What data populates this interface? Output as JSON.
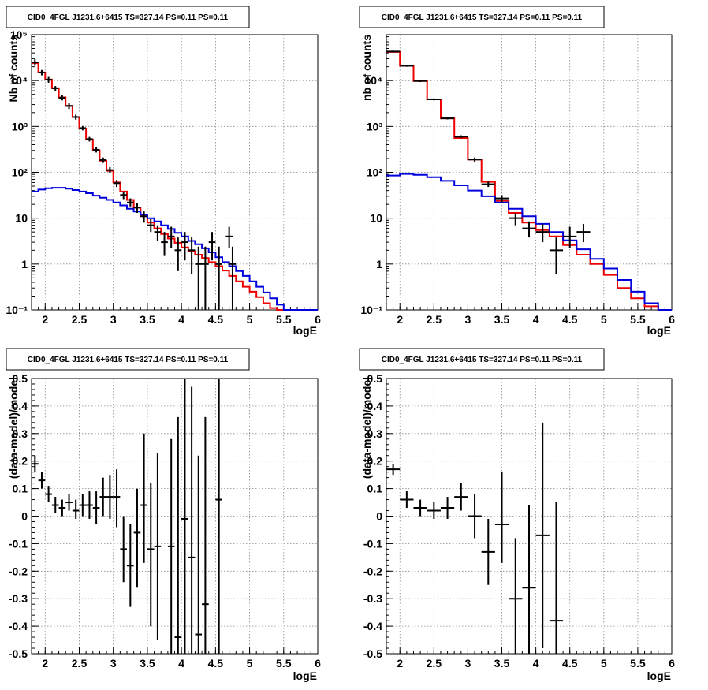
{
  "colors": {
    "data": "#000000",
    "total_model": "#ee0000",
    "component": "#0000dd",
    "grid": "#888888"
  },
  "chart_data": [
    {
      "type": "line",
      "title": "CID0_4FGL J1231.6+6415 TS=327.14 PS=0.11 PS=0.11",
      "xlabel": "logE",
      "ylabel": "Nb of counts",
      "yscale": "log",
      "grid": true,
      "xlim": [
        1.8,
        6.0
      ],
      "ylim": [
        0.1,
        100000
      ],
      "xticks": [
        "2",
        "2.5",
        "3",
        "3.5",
        "4",
        "4.5",
        "5",
        "5.5",
        "6"
      ],
      "yticks": [
        "10⁻¹",
        "1",
        "10",
        "10²",
        "10³",
        "10⁴",
        "10⁵"
      ],
      "bin_edges": [
        1.8,
        1.9,
        2.0,
        2.1,
        2.2,
        2.3,
        2.4,
        2.5,
        2.6,
        2.7,
        2.8,
        2.9,
        3.0,
        3.1,
        3.2,
        3.3,
        3.4,
        3.5,
        3.6,
        3.7,
        3.8,
        3.9,
        4.0,
        4.1,
        4.2,
        4.3,
        4.4,
        4.5,
        4.6,
        4.7,
        4.8,
        4.9,
        5.0,
        5.1,
        5.2,
        5.3,
        5.4,
        5.5,
        5.6,
        5.7,
        5.8,
        5.9,
        6.0
      ],
      "series": [
        {
          "role": "total",
          "values": [
            24000,
            15000,
            10500,
            6800,
            4300,
            2800,
            1600,
            900,
            520,
            300,
            180,
            108,
            60,
            38,
            25,
            17,
            11,
            8,
            6,
            4.5,
            3.6,
            2.9,
            2.3,
            1.9,
            1.6,
            1.35,
            1.1,
            0.9,
            0.72,
            0.55,
            0.42,
            0.32,
            0.25,
            0.19,
            0.14,
            0.11,
            0.1,
            0.1,
            0.1,
            0.1,
            0.1,
            0.1
          ]
        },
        {
          "role": "component",
          "values": [
            38,
            42,
            45,
            46,
            46,
            44,
            41,
            38,
            35,
            31,
            28,
            25,
            22,
            19,
            16,
            14,
            12,
            10,
            8.5,
            7,
            5.8,
            4.8,
            4,
            3.2,
            2.7,
            2.2,
            1.8,
            1.4,
            1.1,
            0.9,
            0.7,
            0.55,
            0.42,
            0.32,
            0.24,
            0.18,
            0.13,
            0.1,
            0.1,
            0.1,
            0.1,
            0.1
          ]
        },
        {
          "role": "data",
          "points": [
            {
              "x": 1.85,
              "y": 25000,
              "lo": 21000,
              "hi": 29000
            },
            {
              "x": 1.95,
              "y": 15000,
              "lo": 13000,
              "hi": 17000
            },
            {
              "x": 2.05,
              "y": 10500,
              "lo": 9000,
              "hi": 12000
            },
            {
              "x": 2.15,
              "y": 6800,
              "lo": 6000,
              "hi": 7600
            },
            {
              "x": 2.25,
              "y": 4200,
              "lo": 3700,
              "hi": 4800
            },
            {
              "x": 2.35,
              "y": 2800,
              "lo": 2400,
              "hi": 3200
            },
            {
              "x": 2.45,
              "y": 1600,
              "lo": 1400,
              "hi": 1800
            },
            {
              "x": 2.55,
              "y": 920,
              "lo": 820,
              "hi": 1020
            },
            {
              "x": 2.65,
              "y": 530,
              "lo": 470,
              "hi": 590
            },
            {
              "x": 2.75,
              "y": 310,
              "lo": 270,
              "hi": 350
            },
            {
              "x": 2.85,
              "y": 185,
              "lo": 160,
              "hi": 210
            },
            {
              "x": 2.95,
              "y": 112,
              "lo": 95,
              "hi": 130
            },
            {
              "x": 3.05,
              "y": 58,
              "lo": 48,
              "hi": 68
            },
            {
              "x": 3.15,
              "y": 32,
              "lo": 26,
              "hi": 38
            },
            {
              "x": 3.25,
              "y": 22,
              "lo": 18,
              "hi": 27
            },
            {
              "x": 3.35,
              "y": 17,
              "lo": 13,
              "hi": 21
            },
            {
              "x": 3.45,
              "y": 11,
              "lo": 8,
              "hi": 14
            },
            {
              "x": 3.55,
              "y": 7,
              "lo": 5,
              "hi": 9.5
            },
            {
              "x": 3.65,
              "y": 5,
              "lo": 3.2,
              "hi": 7
            },
            {
              "x": 3.75,
              "y": 3,
              "lo": 1.5,
              "hi": 5
            },
            {
              "x": 3.85,
              "y": 4,
              "lo": 2.2,
              "hi": 6.5
            },
            {
              "x": 3.95,
              "y": 2,
              "lo": 0.7,
              "hi": 3.8
            },
            {
              "x": 4.05,
              "y": 3,
              "lo": 1.2,
              "hi": 5
            },
            {
              "x": 4.15,
              "y": 2,
              "lo": 0.6,
              "hi": 3.8
            },
            {
              "x": 4.25,
              "y": 1,
              "lo": 0.1,
              "hi": 2.4
            },
            {
              "x": 4.35,
              "y": 1,
              "lo": 0.1,
              "hi": 2.4
            },
            {
              "x": 4.45,
              "y": 3,
              "lo": 1.2,
              "hi": 5
            },
            {
              "x": 4.55,
              "y": 1,
              "lo": 0.1,
              "hi": 2.4
            },
            {
              "x": 4.7,
              "y": 4,
              "lo": 2.2,
              "hi": 6.5
            },
            {
              "x": 4.75,
              "y": 1,
              "lo": 0.1,
              "hi": 2.4
            }
          ]
        }
      ]
    },
    {
      "type": "line",
      "title": "CID0_4FGL J1231.6+6415 TS=327.14 PS=0.11 PS=0.11",
      "xlabel": "logE",
      "ylabel": "nb of counts",
      "yscale": "log",
      "grid": true,
      "xlim": [
        1.8,
        6.0
      ],
      "ylim": [
        0.1,
        100000
      ],
      "xticks": [
        "2",
        "2.5",
        "3",
        "3.5",
        "4",
        "4.5",
        "5",
        "5.5",
        "6"
      ],
      "yticks": [
        "10⁻¹",
        "1",
        "10",
        "10²",
        "10³",
        "10⁴"
      ],
      "bin_edges": [
        1.8,
        2.0,
        2.2,
        2.4,
        2.6,
        2.8,
        3.0,
        3.2,
        3.4,
        3.6,
        3.8,
        4.0,
        4.2,
        4.4,
        4.6,
        4.8,
        5.0,
        5.2,
        5.4,
        5.6,
        5.8,
        6.0
      ],
      "series": [
        {
          "role": "total",
          "values": [
            42000,
            21000,
            9800,
            3900,
            1500,
            560,
            190,
            62,
            24,
            13,
            8,
            5.5,
            4,
            2.6,
            1.6,
            1.0,
            0.58,
            0.3,
            0.18,
            0.12,
            0.1
          ]
        },
        {
          "role": "component",
          "values": [
            85,
            92,
            88,
            78,
            65,
            52,
            40,
            30,
            22,
            16,
            11,
            7.5,
            5,
            3.3,
            2.1,
            1.3,
            0.8,
            0.45,
            0.25,
            0.14,
            0.1
          ]
        },
        {
          "role": "data",
          "points": [
            {
              "x": 1.9,
              "y": 43000,
              "lo": 41000,
              "hi": 45000
            },
            {
              "x": 2.1,
              "y": 21000,
              "lo": 20000,
              "hi": 22000
            },
            {
              "x": 2.3,
              "y": 9800,
              "lo": 9300,
              "hi": 10300
            },
            {
              "x": 2.5,
              "y": 3900,
              "lo": 3700,
              "hi": 4100
            },
            {
              "x": 2.7,
              "y": 1500,
              "lo": 1420,
              "hi": 1580
            },
            {
              "x": 2.9,
              "y": 600,
              "lo": 560,
              "hi": 640
            },
            {
              "x": 3.1,
              "y": 190,
              "lo": 170,
              "hi": 210
            },
            {
              "x": 3.3,
              "y": 55,
              "lo": 48,
              "hi": 62
            },
            {
              "x": 3.5,
              "y": 27,
              "lo": 22,
              "hi": 32
            },
            {
              "x": 3.7,
              "y": 10,
              "lo": 7,
              "hi": 13
            },
            {
              "x": 3.9,
              "y": 6,
              "lo": 3.8,
              "hi": 8.5
            },
            {
              "x": 4.1,
              "y": 5,
              "lo": 3,
              "hi": 7.5
            },
            {
              "x": 4.3,
              "y": 2,
              "lo": 0.6,
              "hi": 3.8
            },
            {
              "x": 4.5,
              "y": 4,
              "lo": 2.2,
              "hi": 6.5
            },
            {
              "x": 4.7,
              "y": 5,
              "lo": 3,
              "hi": 7.5
            }
          ]
        }
      ]
    },
    {
      "type": "scatter",
      "title": "CID0_4FGL J1231.6+6415 TS=327.14 PS=0.11 PS=0.11",
      "xlabel": "logE",
      "ylabel": "(data-model)/model",
      "grid": true,
      "xlim": [
        1.8,
        6.0
      ],
      "ylim": [
        -0.5,
        0.5
      ],
      "xticks": [
        "2",
        "2.5",
        "3",
        "3.5",
        "4",
        "4.5",
        "5",
        "5.5",
        "6"
      ],
      "yticks": [
        "-0.5",
        "-0.4",
        "-0.3",
        "-0.2",
        "-0.1",
        "0",
        "0.1",
        "0.2",
        "0.3",
        "0.4",
        "0.5"
      ],
      "points": [
        {
          "x": 1.85,
          "y": 0.19,
          "lo": 0.16,
          "hi": 0.22
        },
        {
          "x": 1.95,
          "y": 0.13,
          "lo": 0.1,
          "hi": 0.16
        },
        {
          "x": 2.05,
          "y": 0.08,
          "lo": 0.05,
          "hi": 0.11
        },
        {
          "x": 2.15,
          "y": 0.04,
          "lo": 0.01,
          "hi": 0.07
        },
        {
          "x": 2.25,
          "y": 0.03,
          "lo": 0.0,
          "hi": 0.06
        },
        {
          "x": 2.35,
          "y": 0.05,
          "lo": 0.02,
          "hi": 0.08
        },
        {
          "x": 2.45,
          "y": 0.02,
          "lo": -0.01,
          "hi": 0.06
        },
        {
          "x": 2.55,
          "y": 0.04,
          "lo": 0.0,
          "hi": 0.08
        },
        {
          "x": 2.65,
          "y": 0.04,
          "lo": -0.01,
          "hi": 0.09
        },
        {
          "x": 2.75,
          "y": 0.03,
          "lo": -0.03,
          "hi": 0.09
        },
        {
          "x": 2.85,
          "y": 0.07,
          "lo": 0.0,
          "hi": 0.14
        },
        {
          "x": 2.95,
          "y": 0.07,
          "lo": -0.01,
          "hi": 0.15
        },
        {
          "x": 3.05,
          "y": 0.07,
          "lo": -0.04,
          "hi": 0.17
        },
        {
          "x": 3.15,
          "y": -0.12,
          "lo": -0.24,
          "hi": 0.0
        },
        {
          "x": 3.25,
          "y": -0.18,
          "lo": -0.33,
          "hi": -0.03
        },
        {
          "x": 3.35,
          "y": -0.06,
          "lo": -0.26,
          "hi": 0.1
        },
        {
          "x": 3.45,
          "y": 0.04,
          "lo": -0.17,
          "hi": 0.3
        },
        {
          "x": 3.55,
          "y": -0.12,
          "lo": -0.4,
          "hi": 0.12
        },
        {
          "x": 3.65,
          "y": -0.11,
          "lo": -0.45,
          "hi": 0.23
        },
        {
          "x": 3.85,
          "y": -0.11,
          "lo": -0.5,
          "hi": 0.28
        },
        {
          "x": 3.95,
          "y": -0.44,
          "lo": -0.5,
          "hi": 0.36
        },
        {
          "x": 4.05,
          "y": -0.01,
          "lo": -0.5,
          "hi": 0.5
        },
        {
          "x": 4.15,
          "y": -0.15,
          "lo": -0.5,
          "hi": 0.47
        },
        {
          "x": 4.25,
          "y": -0.43,
          "lo": -0.5,
          "hi": 0.22
        },
        {
          "x": 4.35,
          "y": -0.32,
          "lo": -0.5,
          "hi": 0.36
        },
        {
          "x": 4.55,
          "y": 0.06,
          "lo": -0.5,
          "hi": 0.5
        }
      ]
    },
    {
      "type": "scatter",
      "title": "CID0_4FGL J1231.6+6415 TS=327.14 PS=0.11 PS=0.11",
      "xlabel": "logE",
      "ylabel": "(data-model)/model",
      "grid": true,
      "xlim": [
        1.8,
        6.0
      ],
      "ylim": [
        -0.5,
        0.5
      ],
      "xticks": [
        "2",
        "2.5",
        "3",
        "3.5",
        "4",
        "4.5",
        "5",
        "5.5",
        "6"
      ],
      "yticks": [
        "-0.5",
        "-0.4",
        "-0.3",
        "-0.2",
        "-0.1",
        "0",
        "0.1",
        "0.2",
        "0.3",
        "0.4",
        "0.5"
      ],
      "points": [
        {
          "x": 1.9,
          "y": 0.17,
          "lo": 0.15,
          "hi": 0.19
        },
        {
          "x": 2.1,
          "y": 0.06,
          "lo": 0.03,
          "hi": 0.09
        },
        {
          "x": 2.3,
          "y": 0.03,
          "lo": 0.0,
          "hi": 0.06
        },
        {
          "x": 2.5,
          "y": 0.02,
          "lo": -0.01,
          "hi": 0.05
        },
        {
          "x": 2.7,
          "y": 0.03,
          "lo": -0.01,
          "hi": 0.07
        },
        {
          "x": 2.9,
          "y": 0.07,
          "lo": 0.02,
          "hi": 0.12
        },
        {
          "x": 3.1,
          "y": 0.0,
          "lo": -0.08,
          "hi": 0.08
        },
        {
          "x": 3.3,
          "y": -0.13,
          "lo": -0.25,
          "hi": -0.01
        },
        {
          "x": 3.5,
          "y": -0.03,
          "lo": -0.17,
          "hi": 0.16
        },
        {
          "x": 3.7,
          "y": -0.3,
          "lo": -0.5,
          "hi": -0.08
        },
        {
          "x": 3.9,
          "y": -0.26,
          "lo": -0.5,
          "hi": 0.04
        },
        {
          "x": 4.1,
          "y": -0.07,
          "lo": -0.48,
          "hi": 0.34
        },
        {
          "x": 4.3,
          "y": -0.38,
          "lo": -0.5,
          "hi": 0.05
        }
      ]
    }
  ]
}
